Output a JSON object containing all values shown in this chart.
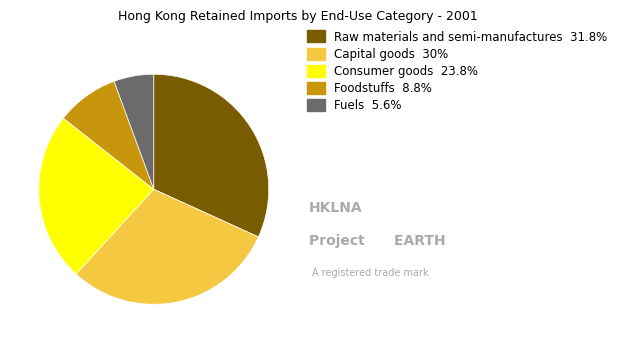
{
  "title": "Hong Kong Retained Imports by End-Use Category - 2001",
  "labels": [
    "Raw materials and semi-manufactures  31.8%",
    "Capital goods  30%",
    "Consumer goods  23.8%",
    "Foodstuffs  8.8%",
    "Fuels  5.6%"
  ],
  "values": [
    31.8,
    30.0,
    23.8,
    8.8,
    5.6
  ],
  "colors": [
    "#7a5c00",
    "#f5c842",
    "#ffff00",
    "#c8960c",
    "#6b6b6b"
  ],
  "startangle": 90,
  "watermark_line1": "HKLNA",
  "watermark_line2": "Project      EARTH",
  "watermark_line3": "A registered trade mark",
  "title_fontsize": 9,
  "legend_fontsize": 8.5,
  "background_color": "#ffffff"
}
